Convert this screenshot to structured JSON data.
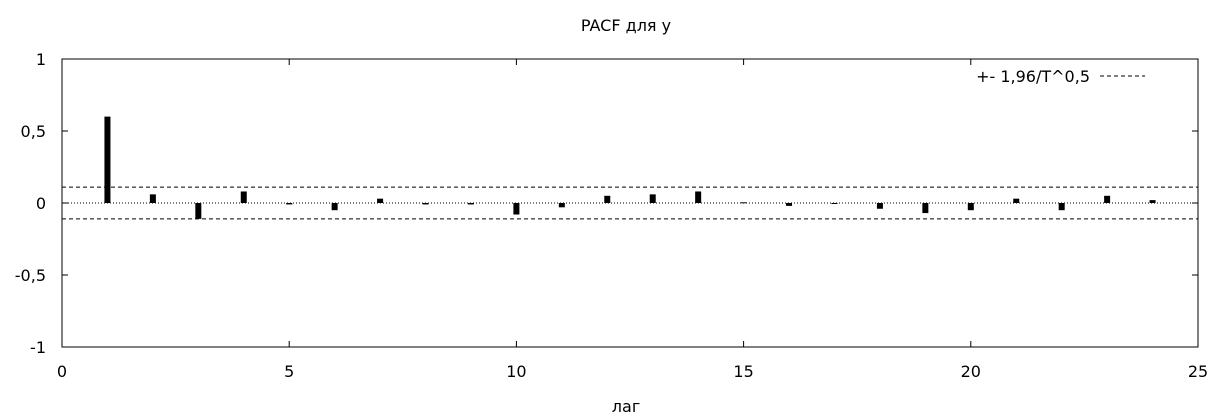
{
  "chart_data": {
    "type": "bar",
    "title": "PACF для y",
    "xlabel": "лаг",
    "ylabel": "",
    "xlim": [
      0,
      25
    ],
    "ylim": [
      -1,
      1
    ],
    "x_ticks": [
      "0",
      "5",
      "10",
      "15",
      "20",
      "25"
    ],
    "y_ticks": [
      "1",
      "0,5",
      "0",
      "-0,5",
      "-1"
    ],
    "x_tick_values": [
      0,
      5,
      10,
      15,
      20,
      25
    ],
    "y_tick_values": [
      1,
      0.5,
      0,
      -0.5,
      -1
    ],
    "lags": [
      1,
      2,
      3,
      4,
      5,
      6,
      7,
      8,
      9,
      10,
      11,
      12,
      13,
      14,
      15,
      16,
      17,
      18,
      19,
      20,
      21,
      22,
      23,
      24
    ],
    "values": [
      0.6,
      0.06,
      -0.11,
      0.08,
      -0.01,
      -0.05,
      0.03,
      -0.01,
      -0.01,
      -0.08,
      -0.03,
      0.05,
      0.06,
      0.08,
      0.005,
      -0.02,
      -0.005,
      -0.04,
      -0.07,
      -0.05,
      0.03,
      -0.05,
      0.05,
      0.02
    ],
    "confidence_band": 0.11,
    "legend": {
      "label": "+- 1,96/T^0,5",
      "position": "top-right"
    },
    "grid": false
  }
}
